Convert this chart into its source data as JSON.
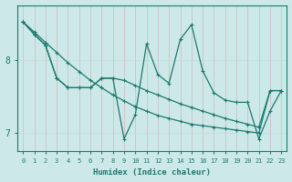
{
  "xlabel": "Humidex (Indice chaleur)",
  "bg_color": "#cce8e8",
  "line_color": "#1a7a6e",
  "grid_color": "#c0dada",
  "xlim": [
    -0.5,
    23.5
  ],
  "ylim": [
    6.75,
    8.75
  ],
  "yticks": [
    7,
    8
  ],
  "xticks": [
    0,
    1,
    2,
    3,
    4,
    5,
    6,
    7,
    8,
    9,
    10,
    11,
    12,
    13,
    14,
    15,
    16,
    17,
    18,
    19,
    20,
    21,
    22,
    23
  ],
  "line1_x": [
    0,
    1,
    2,
    3,
    4,
    5,
    6,
    7,
    8,
    9,
    10,
    11,
    12,
    13,
    14,
    15,
    16,
    17,
    18,
    19,
    20,
    21,
    22,
    23
  ],
  "line1_y": [
    8.52,
    8.38,
    8.24,
    8.1,
    7.96,
    7.84,
    7.72,
    7.62,
    7.52,
    7.44,
    7.36,
    7.3,
    7.24,
    7.2,
    7.16,
    7.12,
    7.1,
    7.08,
    7.06,
    7.04,
    7.02,
    7.0,
    7.58,
    7.58
  ],
  "line2_x": [
    0,
    1,
    2,
    3,
    4,
    5,
    6,
    7,
    8,
    9,
    10,
    11,
    12,
    13,
    14,
    15,
    16,
    17,
    18,
    19,
    20,
    21,
    22,
    23
  ],
  "line2_y": [
    8.52,
    8.35,
    8.2,
    7.75,
    7.62,
    7.62,
    7.62,
    7.75,
    7.75,
    7.72,
    7.65,
    7.58,
    7.52,
    7.46,
    7.4,
    7.35,
    7.3,
    7.25,
    7.2,
    7.16,
    7.12,
    7.08,
    7.58,
    7.58
  ],
  "line3_x": [
    0,
    1,
    2,
    3,
    4,
    5,
    6,
    7,
    8,
    9,
    10,
    11,
    12,
    13,
    14,
    15,
    16,
    17,
    18,
    19,
    20,
    21,
    22,
    23
  ],
  "line3_y": [
    8.52,
    8.35,
    8.2,
    7.75,
    7.62,
    7.62,
    7.62,
    7.75,
    7.75,
    6.92,
    7.25,
    8.22,
    7.8,
    7.68,
    8.28,
    8.48,
    7.85,
    7.55,
    7.45,
    7.42,
    7.42,
    6.92,
    7.3,
    7.58
  ],
  "marker_size": 2.5,
  "line_width": 0.9
}
